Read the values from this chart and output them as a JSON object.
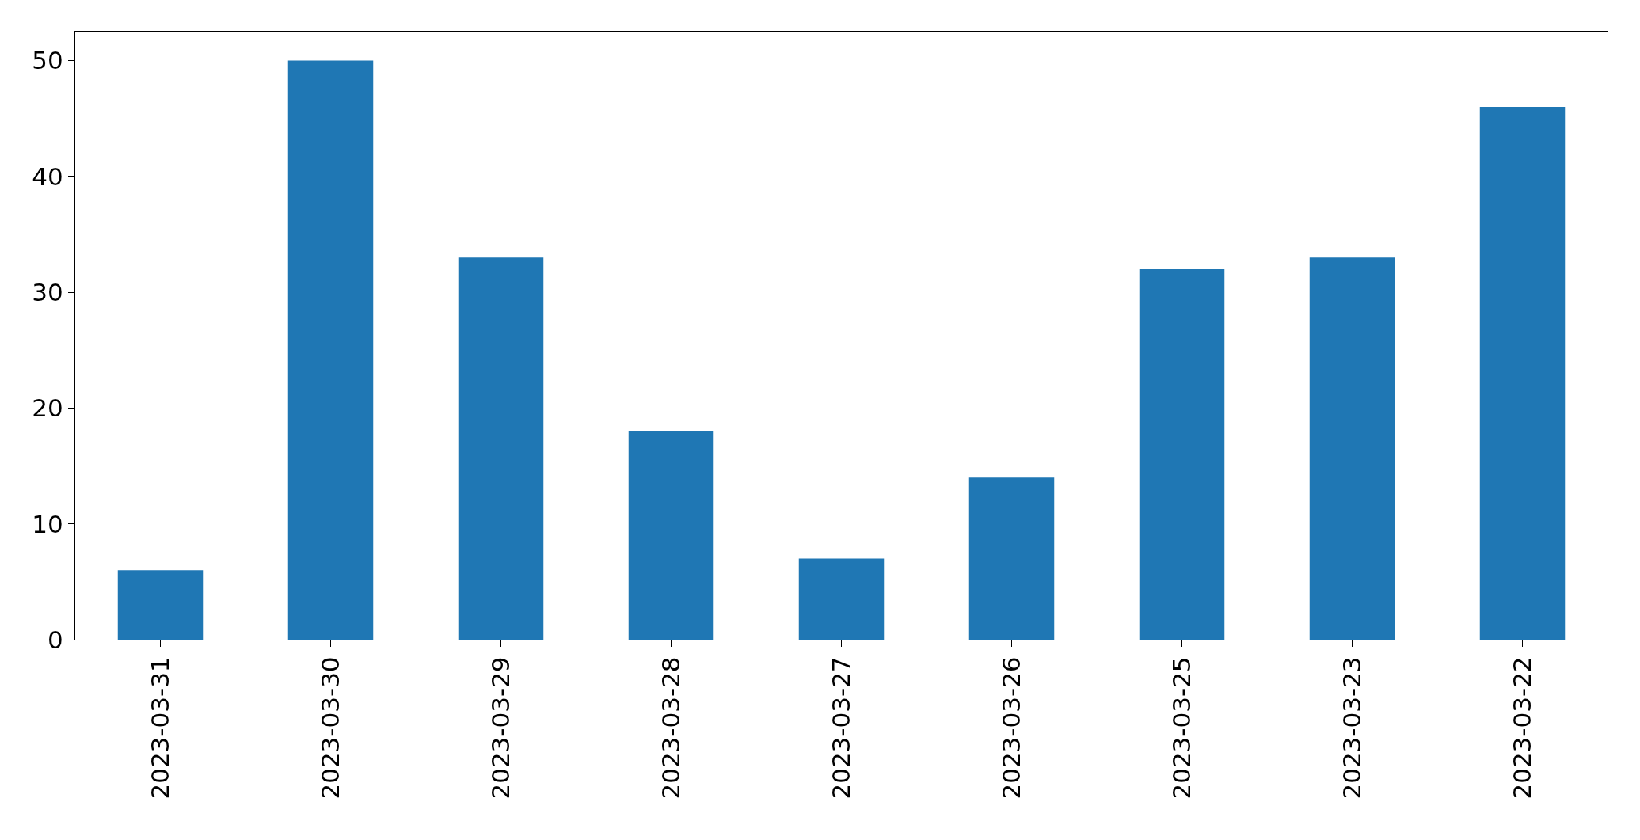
{
  "chart_data": {
    "type": "bar",
    "categories": [
      "2023-03-31",
      "2023-03-30",
      "2023-03-29",
      "2023-03-28",
      "2023-03-27",
      "2023-03-26",
      "2023-03-25",
      "2023-03-23",
      "2023-03-22"
    ],
    "values": [
      6,
      50,
      33,
      18,
      7,
      14,
      32,
      33,
      46
    ],
    "color": "#1f77b4",
    "ylim": [
      0,
      52.5
    ],
    "yticks": [
      0,
      10,
      20,
      30,
      40,
      50
    ],
    "grid": false,
    "legend": false
  }
}
